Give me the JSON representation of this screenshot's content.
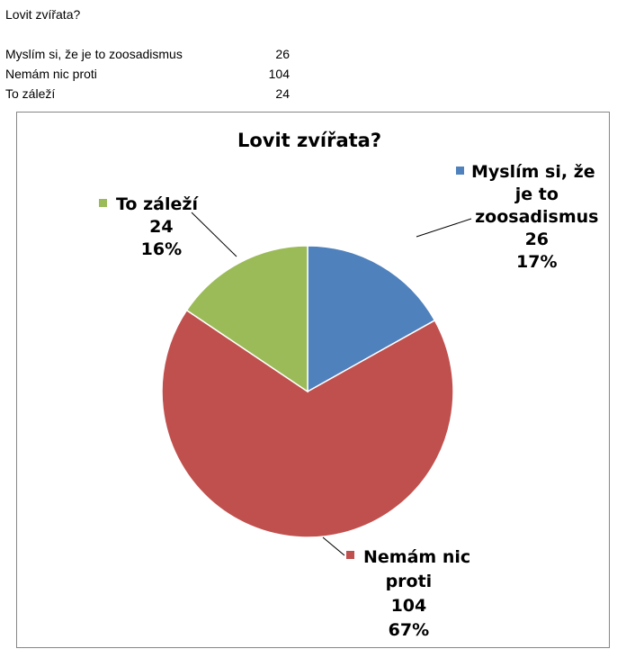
{
  "sheet": {
    "title": "Lovit zvířata?",
    "rows": [
      {
        "label": "Myslím si, že je to zoosadismus",
        "value": "26"
      },
      {
        "label": "Nemám nic proti",
        "value": "104"
      },
      {
        "label": "To záleží",
        "value": "24"
      }
    ]
  },
  "chart_data": {
    "type": "pie",
    "title": "Lovit zvířata?",
    "slices": [
      {
        "label": "Myslím si, že je to zoosadismus",
        "value": 26,
        "percent": "17%",
        "color": "#4f81bd",
        "label_lines": [
          "Myslím si, že",
          "je to",
          "zoosadismus",
          "26",
          "17%"
        ]
      },
      {
        "label": "Nemám nic proti",
        "value": 104,
        "percent": "67%",
        "color": "#c0504d",
        "label_lines": [
          "Nemám nic",
          "proti",
          "104",
          "67%"
        ]
      },
      {
        "label": "To záleží",
        "value": 24,
        "percent": "16%",
        "color": "#9bbb59",
        "label_lines": [
          "To záleží",
          "24",
          "16%"
        ]
      }
    ]
  }
}
